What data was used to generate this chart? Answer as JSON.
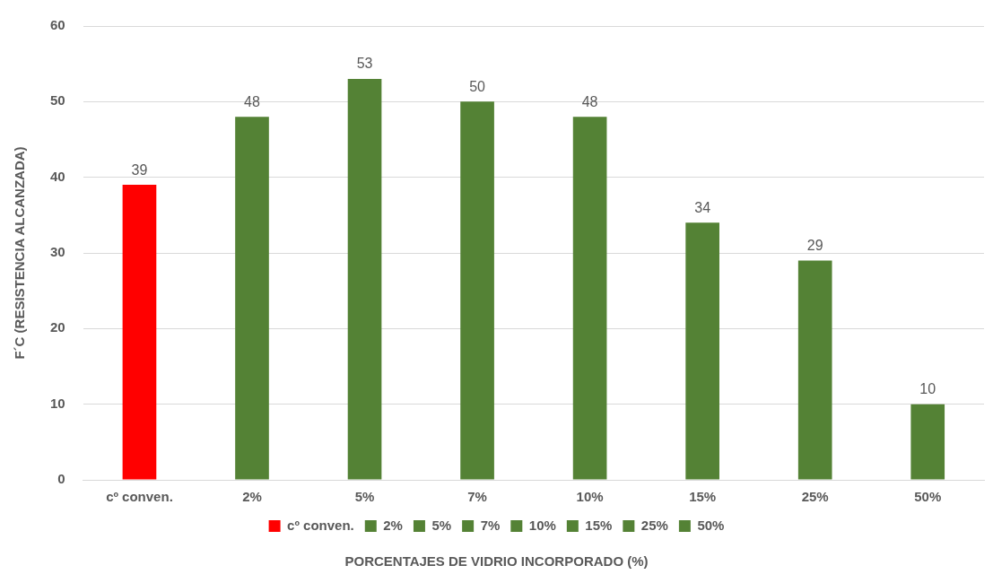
{
  "chart_data": {
    "type": "bar",
    "xlabel": "PORCENTAJES DE VIDRIO INCORPORADO (%)",
    "ylabel": "F´C (RESISTENCIA ALCANZADA)",
    "categories": [
      "cº conven.",
      "2%",
      "5%",
      "7%",
      "10%",
      "15%",
      "25%",
      "50%"
    ],
    "series": [
      {
        "name": "cº conven.",
        "color": "#ff0000",
        "values": [
          39,
          null,
          null,
          null,
          null,
          null,
          null,
          null
        ]
      },
      {
        "name": "2%",
        "color": "#548235",
        "values": [
          null,
          48,
          null,
          null,
          null,
          null,
          null,
          null
        ]
      },
      {
        "name": "5%",
        "color": "#548235",
        "values": [
          null,
          null,
          53,
          null,
          null,
          null,
          null,
          null
        ]
      },
      {
        "name": "7%",
        "color": "#548235",
        "values": [
          null,
          null,
          null,
          50,
          null,
          null,
          null,
          null
        ]
      },
      {
        "name": "10%",
        "color": "#548235",
        "values": [
          null,
          null,
          null,
          null,
          48,
          null,
          null,
          null
        ]
      },
      {
        "name": "15%",
        "color": "#548235",
        "values": [
          null,
          null,
          null,
          null,
          null,
          34,
          null,
          null
        ]
      },
      {
        "name": "25%",
        "color": "#548235",
        "values": [
          null,
          null,
          null,
          null,
          null,
          null,
          29,
          null
        ]
      },
      {
        "name": "50%",
        "color": "#548235",
        "values": [
          null,
          null,
          null,
          null,
          null,
          null,
          null,
          10
        ]
      }
    ],
    "ylim": [
      0,
      60
    ],
    "yticks": [
      0,
      10,
      20,
      30,
      40,
      50,
      60
    ],
    "grid": "y",
    "legend": "bottom",
    "data_labels": true
  }
}
